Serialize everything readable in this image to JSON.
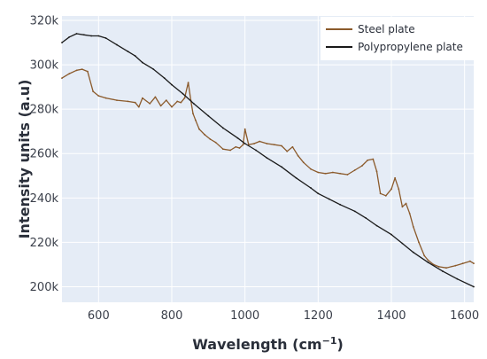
{
  "chart_data": {
    "type": "line",
    "xlabel": "Wavelength (cm",
    "xlabel_sup": "−1",
    "xlabel_close": ")",
    "ylabel": "Intensity units (a.u)",
    "xlim": [
      500,
      1625
    ],
    "ylim": [
      193000,
      322000
    ],
    "x_ticks": [
      600,
      800,
      1000,
      1200,
      1400,
      1600
    ],
    "y_ticks": [
      200000,
      220000,
      240000,
      260000,
      280000,
      300000,
      320000
    ],
    "y_tick_labels": [
      "200k",
      "220k",
      "240k",
      "260k",
      "280k",
      "300k",
      "320k"
    ],
    "grid": true,
    "legend_position": "top-right",
    "plot_background": "#e5ecf6",
    "grid_color": "#ffffff",
    "series": [
      {
        "name": "Steel plate",
        "color": "#8b5a2b",
        "x": [
          500,
          520,
          540,
          555,
          570,
          585,
          600,
          620,
          650,
          680,
          700,
          710,
          720,
          740,
          755,
          770,
          785,
          800,
          815,
          825,
          835,
          845,
          852,
          858,
          865,
          875,
          890,
          905,
          920,
          940,
          960,
          975,
          985,
          995,
          1000,
          1010,
          1025,
          1040,
          1060,
          1080,
          1100,
          1115,
          1130,
          1145,
          1160,
          1180,
          1200,
          1220,
          1240,
          1260,
          1280,
          1300,
          1320,
          1335,
          1350,
          1360,
          1370,
          1385,
          1400,
          1410,
          1420,
          1430,
          1440,
          1450,
          1460,
          1475,
          1490,
          1500,
          1515,
          1530,
          1550,
          1575,
          1595,
          1615,
          1625
        ],
        "y": [
          294000,
          296000,
          297500,
          298000,
          297000,
          288000,
          286000,
          285000,
          284000,
          283500,
          283000,
          281000,
          285000,
          282500,
          285500,
          281500,
          284000,
          281000,
          283500,
          283000,
          285000,
          292000,
          284000,
          278000,
          275000,
          271000,
          268500,
          266500,
          265000,
          262000,
          261500,
          263000,
          262500,
          264000,
          271000,
          264000,
          264500,
          265500,
          264500,
          264000,
          263500,
          261000,
          263000,
          259000,
          256000,
          253000,
          251500,
          251000,
          251500,
          251000,
          250500,
          252500,
          254500,
          257000,
          257500,
          252000,
          242000,
          241000,
          244000,
          249000,
          244000,
          236000,
          237500,
          233000,
          227000,
          220000,
          214000,
          212000,
          210000,
          209000,
          208500,
          209500,
          210500,
          211500,
          210500
        ]
      },
      {
        "name": "Polypropylene plate",
        "color": "#1a1a1a",
        "x": [
          500,
          520,
          540,
          560,
          580,
          600,
          620,
          650,
          680,
          700,
          720,
          750,
          780,
          800,
          830,
          860,
          900,
          940,
          980,
          1000,
          1030,
          1060,
          1100,
          1140,
          1180,
          1200,
          1230,
          1260,
          1300,
          1330,
          1360,
          1400,
          1430,
          1460,
          1500,
          1540,
          1580,
          1625
        ],
        "y": [
          310000,
          312500,
          314000,
          313500,
          313000,
          313000,
          312000,
          309000,
          306000,
          304000,
          301000,
          298000,
          294000,
          291000,
          287000,
          282500,
          277000,
          271500,
          267000,
          264500,
          261500,
          258000,
          254000,
          249000,
          244500,
          242000,
          239500,
          237000,
          234000,
          231000,
          227500,
          223500,
          219500,
          215500,
          211000,
          207000,
          203500,
          200000
        ]
      }
    ]
  }
}
